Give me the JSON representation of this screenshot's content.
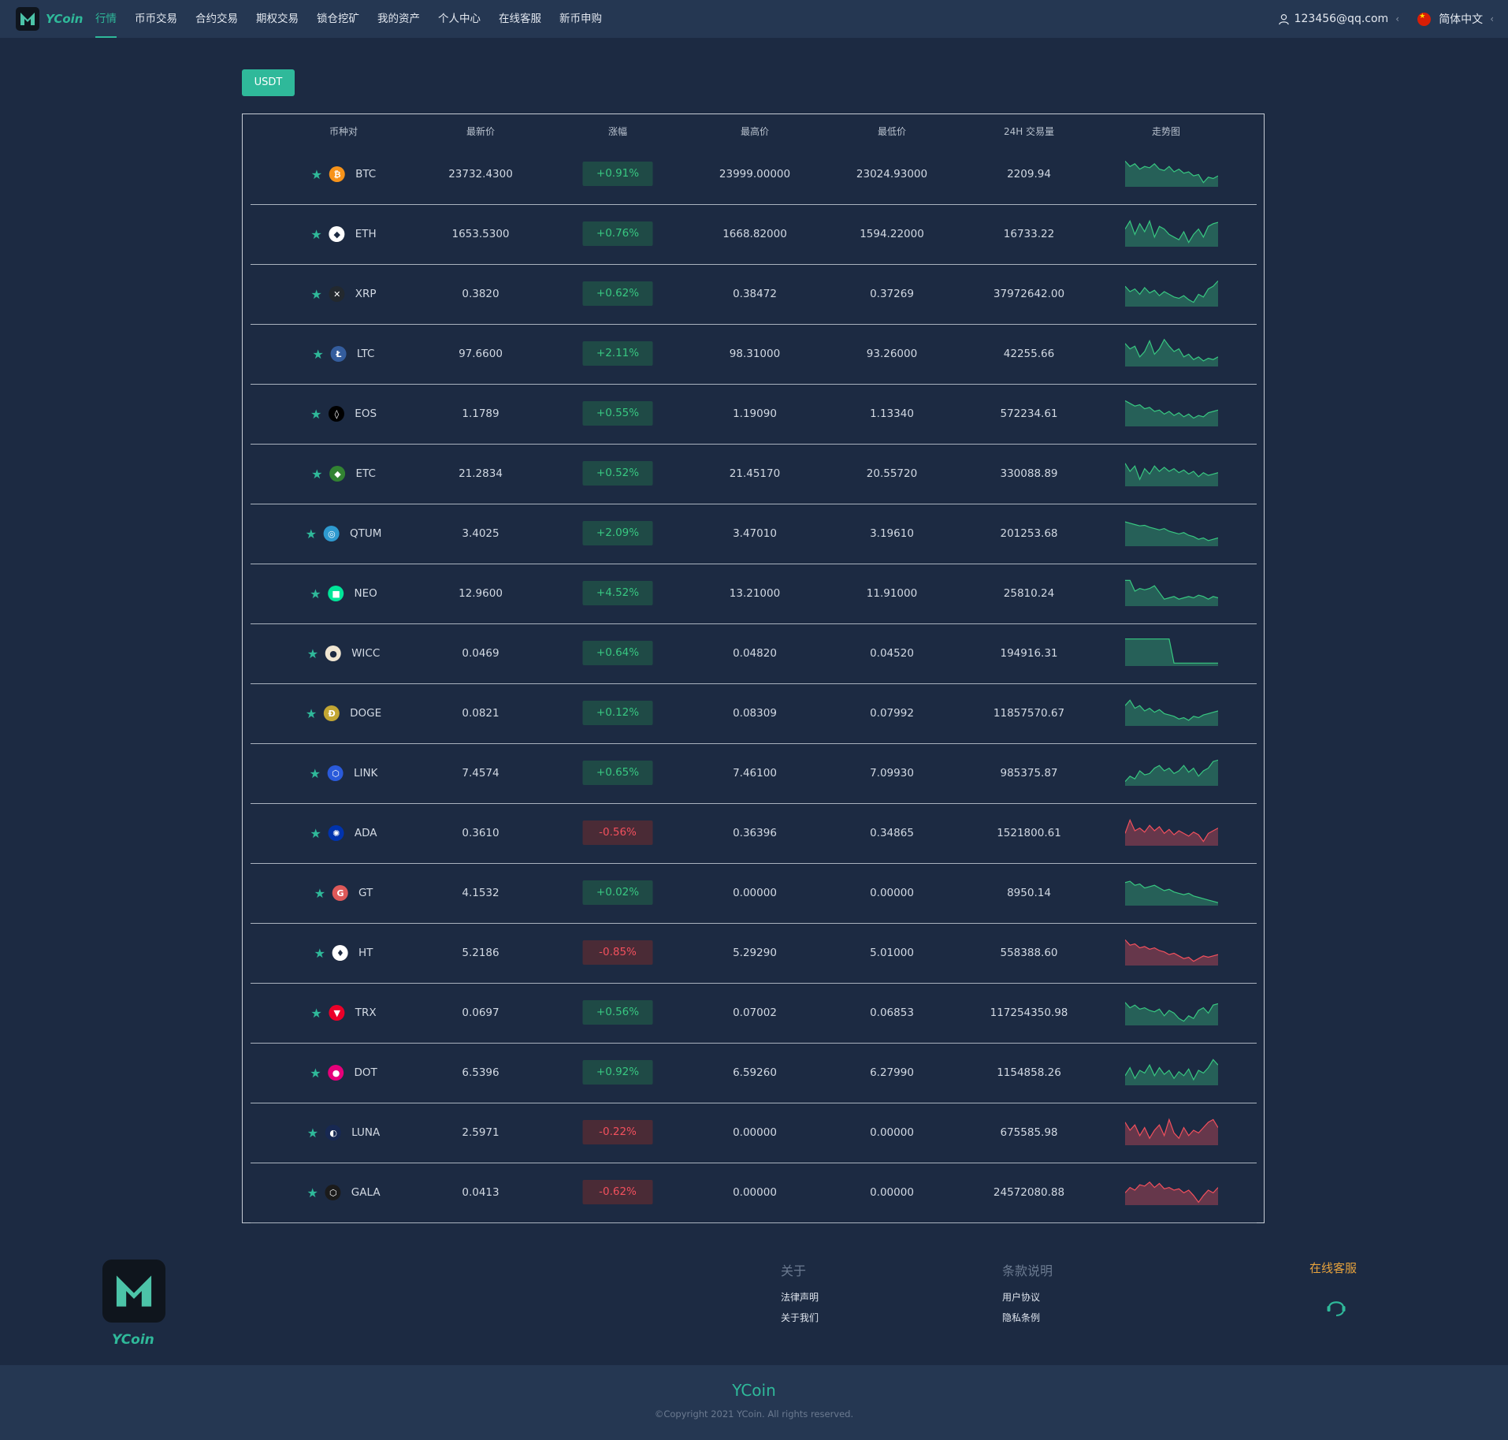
{
  "header": {
    "brand": "YCoin",
    "nav": [
      "行情",
      "币币交易",
      "合约交易",
      "期权交易",
      "锁仓挖矿",
      "我的资产",
      "个人中心",
      "在线客服",
      "新币申购"
    ],
    "user_email": "123456@qq.com",
    "language": "简体中文"
  },
  "quote_tab": "USDT",
  "table": {
    "headers": [
      "币种对",
      "最新价",
      "涨幅",
      "最高价",
      "最低价",
      "24H 交易量",
      "走势图"
    ],
    "rows": [
      {
        "symbol": "BTC",
        "price": "23732.4300",
        "change": "+0.91%",
        "high": "23999.00000",
        "low": "23024.93000",
        "volume": "2209.94",
        "direction": "up",
        "icon": "btc-icon",
        "icon_color": "#f7931a",
        "icon_glyph": "₿",
        "spark": [
          0.9,
          0.7,
          0.8,
          0.6,
          0.7,
          0.65,
          0.8,
          0.6,
          0.55,
          0.7,
          0.5,
          0.6,
          0.45,
          0.5,
          0.35,
          0.4,
          0.1,
          0.3,
          0.25,
          0.35
        ]
      },
      {
        "symbol": "ETH",
        "price": "1653.5300",
        "change": "+0.76%",
        "high": "1668.82000",
        "low": "1594.22000",
        "volume": "16733.22",
        "direction": "up",
        "icon": "eth-icon",
        "icon_color": "#ffffff",
        "icon_glyph": "◆",
        "spark": [
          0.6,
          0.9,
          0.4,
          0.8,
          0.5,
          0.9,
          0.3,
          0.7,
          0.6,
          0.4,
          0.3,
          0.2,
          0.5,
          0.1,
          0.4,
          0.6,
          0.3,
          0.7,
          0.8,
          0.85
        ]
      },
      {
        "symbol": "XRP",
        "price": "0.3820",
        "change": "+0.62%",
        "high": "0.38472",
        "low": "0.37269",
        "volume": "37972642.00",
        "direction": "up",
        "icon": "xrp-icon",
        "icon_color": "#23292f",
        "icon_glyph": "✕",
        "spark": [
          0.7,
          0.5,
          0.6,
          0.4,
          0.65,
          0.45,
          0.55,
          0.35,
          0.5,
          0.4,
          0.3,
          0.25,
          0.35,
          0.2,
          0.1,
          0.4,
          0.3,
          0.6,
          0.7,
          0.9
        ]
      },
      {
        "symbol": "LTC",
        "price": "97.6600",
        "change": "+2.11%",
        "high": "98.31000",
        "low": "93.26000",
        "volume": "42255.66",
        "direction": "up",
        "icon": "ltc-icon",
        "icon_color": "#345d9d",
        "icon_glyph": "Ł",
        "spark": [
          0.8,
          0.6,
          0.7,
          0.3,
          0.5,
          0.9,
          0.4,
          0.6,
          0.95,
          0.7,
          0.5,
          0.6,
          0.3,
          0.4,
          0.2,
          0.3,
          0.15,
          0.25,
          0.2,
          0.3
        ]
      },
      {
        "symbol": "EOS",
        "price": "1.1789",
        "change": "+0.55%",
        "high": "1.19090",
        "low": "1.13340",
        "volume": "572234.61",
        "direction": "up",
        "icon": "eos-icon",
        "icon_color": "#000000",
        "icon_glyph": "◊",
        "spark": [
          0.9,
          0.8,
          0.7,
          0.75,
          0.6,
          0.65,
          0.5,
          0.55,
          0.4,
          0.5,
          0.35,
          0.45,
          0.3,
          0.4,
          0.25,
          0.35,
          0.3,
          0.45,
          0.5,
          0.55
        ]
      },
      {
        "symbol": "ETC",
        "price": "21.2834",
        "change": "+0.52%",
        "high": "21.45170",
        "low": "20.55720",
        "volume": "330088.89",
        "direction": "up",
        "icon": "etc-icon",
        "icon_color": "#328332",
        "icon_glyph": "◆",
        "spark": [
          0.8,
          0.5,
          0.7,
          0.2,
          0.6,
          0.4,
          0.7,
          0.5,
          0.65,
          0.5,
          0.6,
          0.45,
          0.55,
          0.4,
          0.5,
          0.3,
          0.45,
          0.35,
          0.4,
          0.45
        ]
      },
      {
        "symbol": "QTUM",
        "price": "3.4025",
        "change": "+2.09%",
        "high": "3.47010",
        "low": "3.19610",
        "volume": "201253.68",
        "direction": "up",
        "icon": "qtum-icon",
        "icon_color": "#2e9ad0",
        "icon_glyph": "◎",
        "spark": [
          0.85,
          0.8,
          0.75,
          0.7,
          0.72,
          0.65,
          0.6,
          0.55,
          0.6,
          0.5,
          0.45,
          0.4,
          0.45,
          0.35,
          0.3,
          0.2,
          0.25,
          0.15,
          0.2,
          0.25
        ]
      },
      {
        "symbol": "NEO",
        "price": "12.9600",
        "change": "+4.52%",
        "high": "13.21000",
        "low": "11.91000",
        "volume": "25810.24",
        "direction": "up",
        "icon": "neo-icon",
        "icon_color": "#00e599",
        "icon_glyph": "■",
        "spark": [
          0.9,
          0.9,
          0.5,
          0.6,
          0.55,
          0.6,
          0.7,
          0.45,
          0.2,
          0.25,
          0.3,
          0.2,
          0.25,
          0.3,
          0.25,
          0.35,
          0.3,
          0.2,
          0.3,
          0.25
        ]
      },
      {
        "symbol": "WICC",
        "price": "0.0469",
        "change": "+0.64%",
        "high": "0.04820",
        "low": "0.04520",
        "volume": "194916.31",
        "direction": "up",
        "icon": "wicc-icon",
        "icon_color": "#f0e6d2",
        "icon_glyph": "●",
        "spark": [
          0.95,
          0.95,
          0.95,
          0.95,
          0.95,
          0.95,
          0.95,
          0.95,
          0.95,
          0.95,
          0.05,
          0.05,
          0.05,
          0.05,
          0.05,
          0.05,
          0.05,
          0.05,
          0.05,
          0.05
        ]
      },
      {
        "symbol": "DOGE",
        "price": "0.0821",
        "change": "+0.12%",
        "high": "0.08309",
        "low": "0.07992",
        "volume": "11857570.67",
        "direction": "up",
        "icon": "doge-icon",
        "icon_color": "#c2a633",
        "icon_glyph": "Ð",
        "spark": [
          0.7,
          0.9,
          0.6,
          0.7,
          0.5,
          0.6,
          0.45,
          0.55,
          0.4,
          0.35,
          0.3,
          0.2,
          0.25,
          0.15,
          0.3,
          0.25,
          0.35,
          0.4,
          0.45,
          0.5
        ]
      },
      {
        "symbol": "LINK",
        "price": "7.4574",
        "change": "+0.65%",
        "high": "7.46100",
        "low": "7.09930",
        "volume": "985375.87",
        "direction": "up",
        "icon": "link-icon",
        "icon_color": "#2a5ada",
        "icon_glyph": "⬡",
        "spark": [
          0.1,
          0.3,
          0.2,
          0.5,
          0.35,
          0.4,
          0.6,
          0.7,
          0.5,
          0.6,
          0.4,
          0.5,
          0.7,
          0.45,
          0.6,
          0.3,
          0.5,
          0.6,
          0.85,
          0.9
        ]
      },
      {
        "symbol": "ADA",
        "price": "0.3610",
        "change": "-0.56%",
        "high": "0.36396",
        "low": "0.34865",
        "volume": "1521800.61",
        "direction": "down",
        "icon": "ada-icon",
        "icon_color": "#0033ad",
        "icon_glyph": "✺",
        "spark": [
          0.4,
          0.9,
          0.5,
          0.6,
          0.45,
          0.7,
          0.5,
          0.65,
          0.4,
          0.55,
          0.35,
          0.5,
          0.4,
          0.3,
          0.45,
          0.35,
          0.1,
          0.4,
          0.5,
          0.6
        ]
      },
      {
        "symbol": "GT",
        "price": "4.1532",
        "change": "+0.02%",
        "high": "0.00000",
        "low": "0.00000",
        "volume": "8950.14",
        "direction": "up",
        "icon": "gt-icon",
        "icon_color": "#de5959",
        "icon_glyph": "G",
        "spark": [
          0.8,
          0.85,
          0.7,
          0.75,
          0.6,
          0.65,
          0.7,
          0.6,
          0.5,
          0.55,
          0.45,
          0.4,
          0.35,
          0.4,
          0.3,
          0.25,
          0.2,
          0.15,
          0.1,
          0.05
        ]
      },
      {
        "symbol": "HT",
        "price": "5.2186",
        "change": "-0.85%",
        "high": "5.29290",
        "low": "5.01000",
        "volume": "558388.60",
        "direction": "down",
        "icon": "ht-icon",
        "icon_color": "#ffffff",
        "icon_glyph": "♦",
        "spark": [
          0.9,
          0.7,
          0.75,
          0.6,
          0.65,
          0.55,
          0.6,
          0.5,
          0.45,
          0.35,
          0.4,
          0.3,
          0.2,
          0.25,
          0.1,
          0.2,
          0.3,
          0.25,
          0.3,
          0.35
        ]
      },
      {
        "symbol": "TRX",
        "price": "0.0697",
        "change": "+0.56%",
        "high": "0.07002",
        "low": "0.06853",
        "volume": "117254350.98",
        "direction": "up",
        "icon": "trx-icon",
        "icon_color": "#eb0029",
        "icon_glyph": "▼",
        "spark": [
          0.8,
          0.6,
          0.7,
          0.55,
          0.6,
          0.5,
          0.45,
          0.55,
          0.3,
          0.5,
          0.4,
          0.2,
          0.1,
          0.3,
          0.2,
          0.5,
          0.6,
          0.4,
          0.7,
          0.75
        ]
      },
      {
        "symbol": "DOT",
        "price": "6.5396",
        "change": "+0.92%",
        "high": "6.59260",
        "low": "6.27990",
        "volume": "1154858.26",
        "direction": "up",
        "icon": "dot-icon",
        "icon_color": "#e6007a",
        "icon_glyph": "●",
        "spark": [
          0.3,
          0.6,
          0.2,
          0.5,
          0.4,
          0.7,
          0.3,
          0.6,
          0.35,
          0.5,
          0.2,
          0.45,
          0.3,
          0.55,
          0.15,
          0.5,
          0.4,
          0.6,
          0.9,
          0.7
        ]
      },
      {
        "symbol": "LUNA",
        "price": "2.5971",
        "change": "-0.22%",
        "high": "0.00000",
        "low": "0.00000",
        "volume": "675585.98",
        "direction": "down",
        "icon": "luna-icon",
        "icon_color": "#172852",
        "icon_glyph": "◐",
        "spark": [
          0.8,
          0.5,
          0.7,
          0.3,
          0.6,
          0.2,
          0.5,
          0.7,
          0.3,
          0.9,
          0.4,
          0.2,
          0.6,
          0.3,
          0.5,
          0.4,
          0.6,
          0.8,
          0.9,
          0.6
        ]
      },
      {
        "symbol": "GALA",
        "price": "0.0413",
        "change": "-0.62%",
        "high": "0.00000",
        "low": "0.00000",
        "volume": "24572080.88",
        "direction": "down",
        "icon": "gala-icon",
        "icon_color": "#1b1b1b",
        "icon_glyph": "⬡",
        "spark": [
          0.4,
          0.6,
          0.5,
          0.7,
          0.65,
          0.8,
          0.6,
          0.75,
          0.55,
          0.6,
          0.5,
          0.55,
          0.4,
          0.5,
          0.3,
          0.05,
          0.3,
          0.5,
          0.4,
          0.6
        ]
      }
    ]
  },
  "footer": {
    "brand": "YCoin",
    "about_title": "关于",
    "about_links": [
      "法律声明",
      "关于我们"
    ],
    "terms_title": "条款说明",
    "terms_links": [
      "用户协议",
      "隐私条例"
    ],
    "service": "在线客服",
    "bottom_brand": "YCoin",
    "copyright": "©Copyright 2021 YCoin. All rights reserved."
  },
  "colors": {
    "up": "#38c781",
    "down": "#f2505d",
    "accent": "#2fb99a",
    "service": "#e8a33d"
  }
}
